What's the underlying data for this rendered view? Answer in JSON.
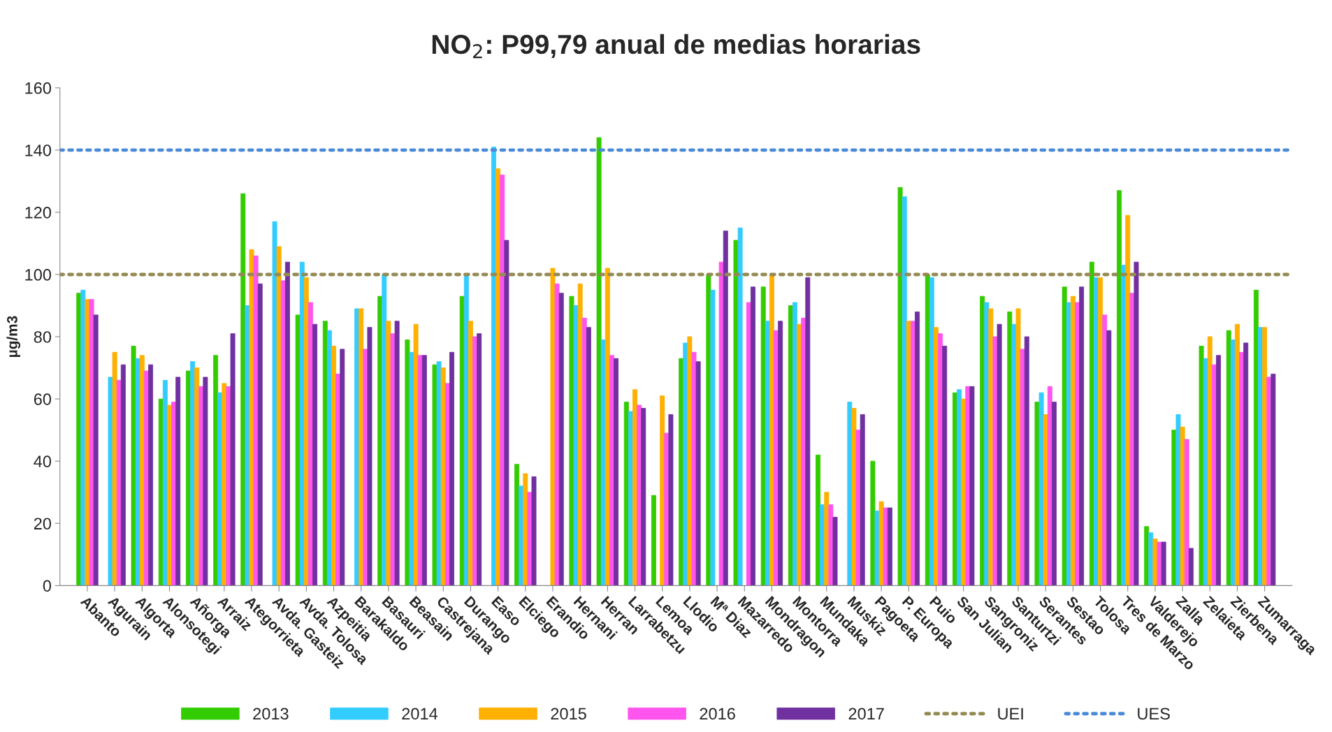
{
  "chart_data": {
    "type": "bar",
    "title": "NO$_{2}$: P99,79 anual de medias horarias",
    "ylabel": "µg/m3",
    "categories": [
      "Abanto",
      "Agurain",
      "Algorta",
      "Alonsotegi",
      "Añorga",
      "Arraiz",
      "Ategorrieta",
      "Avda. Gasteiz",
      "Avda. Tolosa",
      "Azpeitia",
      "Barakaldo",
      "Basauri",
      "Beasain",
      "Castrejana",
      "Durango",
      "Easo",
      "Elciego",
      "Erandio",
      "Hernani",
      "Herran",
      "Larrabetzu",
      "Lemoa",
      "Llodio",
      "Mª Diaz",
      "Mazarredo",
      "Mondragon",
      "Montorra",
      "Mundaka",
      "Muskiz",
      "Pagoeta",
      "P. Europa",
      "Puio",
      "San Julian",
      "Sangroniz",
      "Santurtzi",
      "Serantes",
      "Sestao",
      "Tolosa",
      "Tres de Marzo",
      "Valderejo",
      "Zalla",
      "Zelaieta",
      "Zierbena",
      "Zumarraga"
    ],
    "series": [
      {
        "name": "2013",
        "color": "#33cc00",
        "values": [
          94,
          null,
          77,
          60,
          69,
          74,
          126,
          null,
          87,
          85,
          null,
          93,
          79,
          71,
          93,
          null,
          39,
          null,
          93,
          144,
          59,
          29,
          73,
          100,
          111,
          96,
          90,
          42,
          null,
          40,
          128,
          100,
          62,
          93,
          88,
          59,
          96,
          104,
          127,
          19,
          50,
          77,
          82,
          95
        ]
      },
      {
        "name": "2014",
        "color": "#33ccff",
        "values": [
          95,
          67,
          73,
          66,
          72,
          62,
          90,
          117,
          104,
          82,
          89,
          100,
          75,
          72,
          100,
          141,
          32,
          null,
          90,
          79,
          56,
          null,
          78,
          95,
          115,
          85,
          91,
          26,
          59,
          24,
          125,
          99,
          63,
          91,
          84,
          62,
          91,
          99,
          103,
          17,
          55,
          73,
          79,
          83
        ]
      },
      {
        "name": "2015",
        "color": "#ffb000",
        "values": [
          92,
          75,
          74,
          58,
          70,
          65,
          108,
          109,
          99,
          77,
          89,
          85,
          84,
          70,
          85,
          134,
          36,
          102,
          97,
          102,
          63,
          61,
          80,
          null,
          null,
          100,
          84,
          30,
          57,
          27,
          85,
          83,
          60,
          89,
          89,
          55,
          93,
          99,
          119,
          15,
          51,
          80,
          84,
          83
        ]
      },
      {
        "name": "2016",
        "color": "#ff55ee",
        "values": [
          92,
          66,
          69,
          59,
          64,
          64,
          106,
          98,
          91,
          68,
          76,
          81,
          74,
          65,
          80,
          132,
          30,
          97,
          86,
          74,
          58,
          49,
          75,
          104,
          91,
          82,
          86,
          26,
          50,
          25,
          85,
          81,
          64,
          80,
          76,
          64,
          91,
          87,
          94,
          14,
          47,
          71,
          75,
          67
        ]
      },
      {
        "name": "2017",
        "color": "#7030a0",
        "values": [
          87,
          71,
          71,
          67,
          67,
          81,
          97,
          104,
          84,
          76,
          83,
          85,
          74,
          75,
          81,
          111,
          35,
          94,
          83,
          73,
          57,
          55,
          72,
          114,
          96,
          85,
          99,
          22,
          55,
          25,
          88,
          77,
          64,
          84,
          80,
          59,
          96,
          82,
          104,
          14,
          12,
          74,
          78,
          68
        ]
      }
    ],
    "ref_lines": [
      {
        "axis": "y",
        "value": 100,
        "label": "UEI",
        "color": "#948a54",
        "line_style": "dotted"
      },
      {
        "axis": "y",
        "value": 140,
        "label": "UES",
        "color": "#4a8ad8",
        "line_style": "dotted"
      }
    ],
    "ylim": [
      0,
      160
    ],
    "yticks": [
      0,
      20,
      40,
      60,
      80,
      100,
      120,
      140,
      160
    ],
    "grid": false,
    "legend": "bottom"
  }
}
